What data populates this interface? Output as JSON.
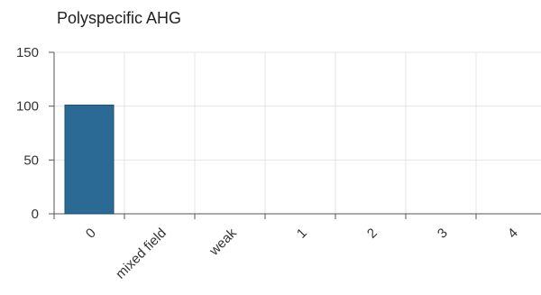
{
  "chart_data": {
    "type": "bar",
    "title": "Polyspecific AHG",
    "categories": [
      "0",
      "mixed field",
      "weak",
      "1",
      "2",
      "3",
      "4"
    ],
    "values": [
      101,
      0,
      0,
      0,
      0,
      0,
      0
    ],
    "xlabel": "",
    "ylabel": "",
    "ylim": [
      0,
      150
    ],
    "yticks": [
      0,
      50,
      100,
      150
    ],
    "grid": true,
    "legend": "none",
    "colors": {
      "bar": "#2b6a94",
      "bar_edge": "#1f4f70",
      "grid": "#e4e4e4",
      "axis": "#555555"
    }
  }
}
